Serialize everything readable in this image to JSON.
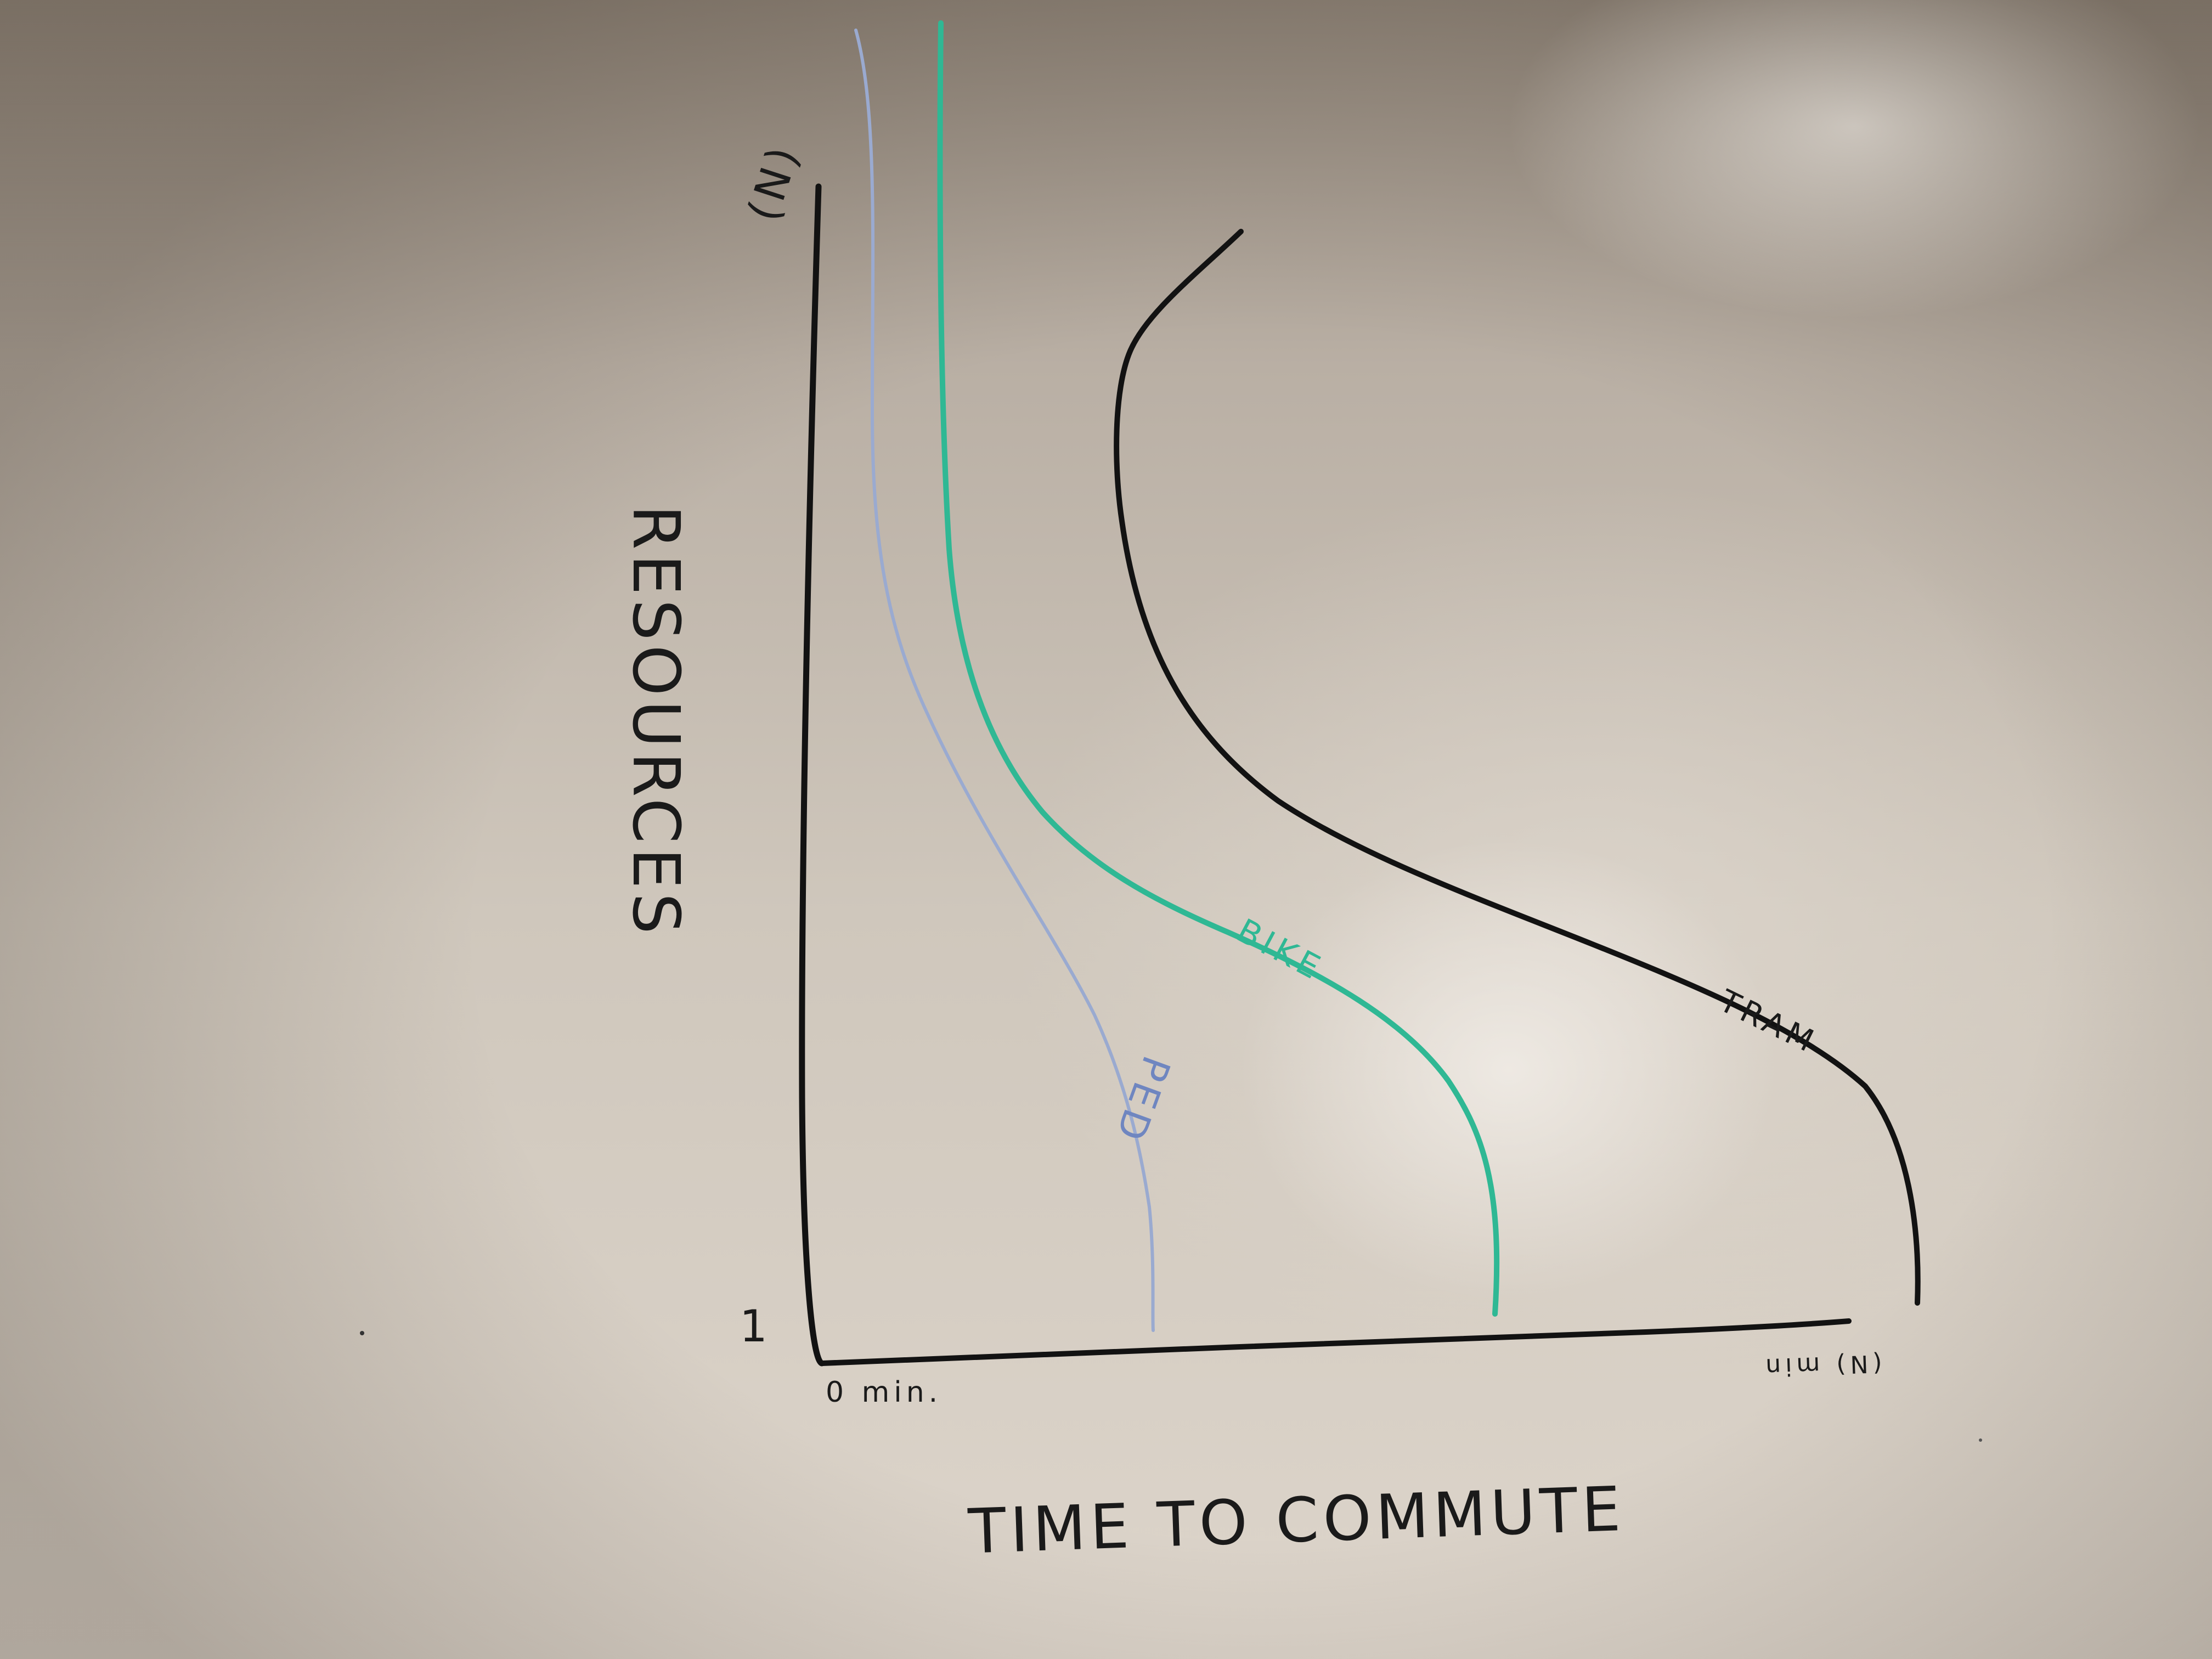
{
  "whiteboard": {
    "y_axis": {
      "title": "RESOURCES",
      "top_label": "(N)",
      "bottom_label": "1"
    },
    "x_axis": {
      "title": "TIME TO COMMUTE",
      "start_label": "0 min.",
      "end_label": "(N) min"
    },
    "curves": [
      {
        "label": "PED",
        "color": "#8fa1c8"
      },
      {
        "label": "BIKE",
        "color": "#2fb894"
      },
      {
        "label": "TRAM",
        "color": "#151515"
      }
    ],
    "marker_colors": {
      "black": "#151515",
      "green": "#2fb894",
      "blue": "#6f86c0"
    }
  }
}
